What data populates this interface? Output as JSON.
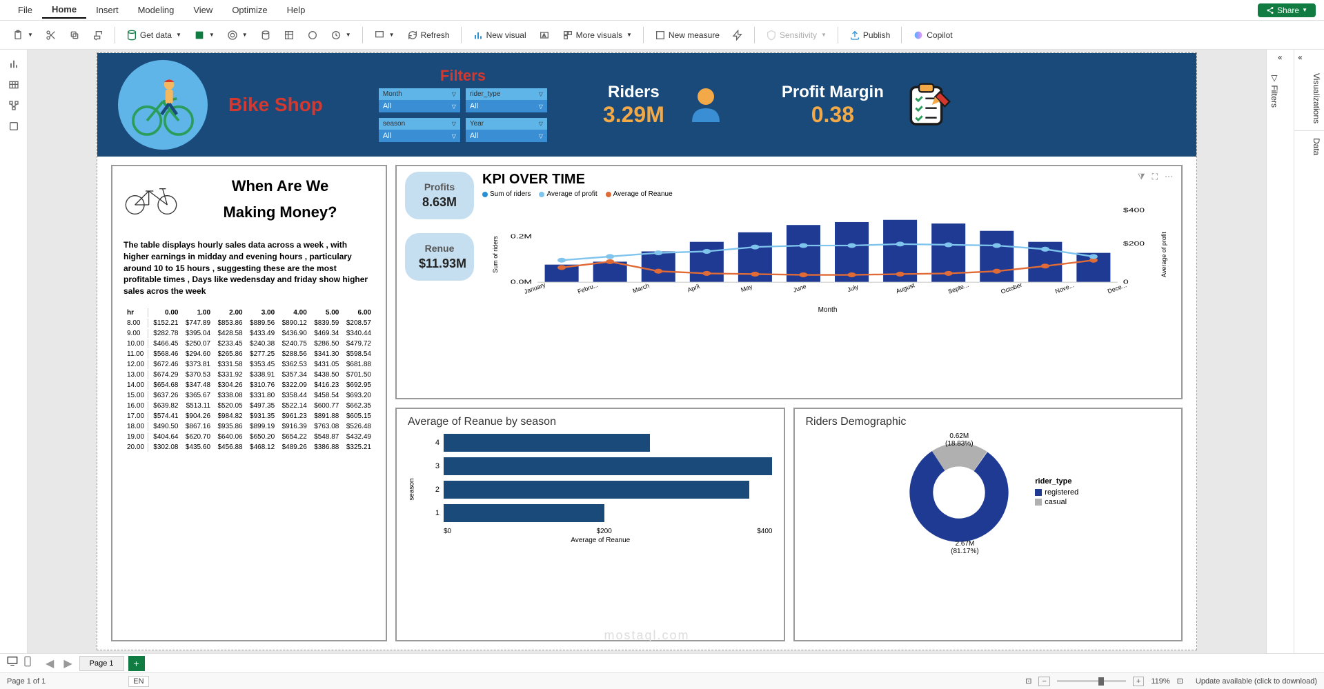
{
  "menu": [
    "File",
    "Home",
    "Insert",
    "Modeling",
    "View",
    "Optimize",
    "Help"
  ],
  "menu_active": "Home",
  "share_label": "Share",
  "toolbar": {
    "get_data": "Get data",
    "refresh": "Refresh",
    "new_visual": "New visual",
    "more_visuals": "More visuals",
    "new_measure": "New measure",
    "sensitivity": "Sensitivity",
    "publish": "Publish",
    "copilot": "Copilot"
  },
  "right_rail": {
    "visualizations": "Visualizations",
    "data": "Data",
    "filters": "Filters"
  },
  "header": {
    "shop_title": "Bike Shop",
    "filters_title": "Filters",
    "filters": [
      {
        "label": "Month",
        "value": "All"
      },
      {
        "label": "rider_type",
        "value": "All"
      },
      {
        "label": "season",
        "value": "All"
      },
      {
        "label": "Year",
        "value": "All"
      }
    ],
    "riders_label": "Riders",
    "riders_value": "3.29M",
    "pm_label": "Profit Margin",
    "pm_value": "0.38"
  },
  "insight": {
    "title1": "When Are We",
    "title2": "Making Money?",
    "text": "The table displays hourly sales data across a week , with higher earnings in midday and evening hours , particulary around 10 to 15 hours , suggesting these are the most profitable times , Days like wedensday and friday show higher sales acros the week",
    "columns": [
      "hr",
      "0.00",
      "1.00",
      "2.00",
      "3.00",
      "4.00",
      "5.00",
      "6.00"
    ],
    "rows": [
      [
        "8.00",
        "$152.21",
        "$747.89",
        "$853.86",
        "$889.56",
        "$890.12",
        "$839.59",
        "$208.57"
      ],
      [
        "9.00",
        "$282.78",
        "$395.04",
        "$428.58",
        "$433.49",
        "$436.90",
        "$469.34",
        "$340.44"
      ],
      [
        "10.00",
        "$466.45",
        "$250.07",
        "$233.45",
        "$240.38",
        "$240.75",
        "$286.50",
        "$479.72"
      ],
      [
        "11.00",
        "$568.46",
        "$294.60",
        "$265.86",
        "$277.25",
        "$288.56",
        "$341.30",
        "$598.54"
      ],
      [
        "12.00",
        "$672.46",
        "$373.81",
        "$331.58",
        "$353.45",
        "$362.53",
        "$431.05",
        "$681.88"
      ],
      [
        "13.00",
        "$674.29",
        "$370.53",
        "$331.92",
        "$338.91",
        "$357.34",
        "$438.50",
        "$701.50"
      ],
      [
        "14.00",
        "$654.68",
        "$347.48",
        "$304.26",
        "$310.76",
        "$322.09",
        "$416.23",
        "$692.95"
      ],
      [
        "15.00",
        "$637.26",
        "$365.67",
        "$338.08",
        "$331.80",
        "$358.44",
        "$458.54",
        "$693.20"
      ],
      [
        "16.00",
        "$639.82",
        "$513.11",
        "$520.05",
        "$497.35",
        "$522.14",
        "$600.77",
        "$662.35"
      ],
      [
        "17.00",
        "$574.41",
        "$904.26",
        "$984.82",
        "$931.35",
        "$961.23",
        "$891.88",
        "$605.15"
      ],
      [
        "18.00",
        "$490.50",
        "$867.16",
        "$935.86",
        "$899.19",
        "$916.39",
        "$763.08",
        "$526.48"
      ],
      [
        "19.00",
        "$404.64",
        "$620.70",
        "$640.06",
        "$650.20",
        "$654.22",
        "$548.87",
        "$432.49"
      ],
      [
        "20.00",
        "$302.08",
        "$435.60",
        "$456.88",
        "$468.12",
        "$489.26",
        "$386.88",
        "$325.21"
      ]
    ]
  },
  "kpi_panel": {
    "title": "KPI OVER TIME",
    "side_cards": [
      {
        "label": "Profits",
        "value": "8.63M"
      },
      {
        "label": "Renue",
        "value": "$11.93M"
      }
    ],
    "legend": [
      {
        "label": "Sum of riders",
        "color": "#2a8fd4"
      },
      {
        "label": "Average of profit",
        "color": "#7fc4ec"
      },
      {
        "label": "Average of Reanue",
        "color": "#e06b37"
      }
    ],
    "months": [
      "January",
      "Febru...",
      "March",
      "April",
      "May",
      "June",
      "July",
      "August",
      "Septe...",
      "October",
      "Nove...",
      "Dece..."
    ],
    "bars": [
      0.24,
      0.28,
      0.42,
      0.55,
      0.68,
      0.78,
      0.82,
      0.85,
      0.8,
      0.7,
      0.55,
      0.4
    ],
    "line_profit": [
      0.3,
      0.35,
      0.4,
      0.42,
      0.48,
      0.5,
      0.5,
      0.52,
      0.51,
      0.5,
      0.45,
      0.35
    ],
    "line_revenue": [
      0.1,
      0.18,
      0.05,
      0.02,
      0.01,
      0.0,
      0.0,
      0.01,
      0.02,
      0.05,
      0.12,
      0.2
    ],
    "bar_color": "#1f3a93",
    "y_left_ticks": [
      "0.2M",
      "0.0M"
    ],
    "y_right_ticks": [
      "$400",
      "$200",
      "0"
    ],
    "y_left_title": "Sum of riders",
    "y_right_title": "Average of profit",
    "x_title": "Month"
  },
  "season_chart": {
    "title": "Average of Reanue by season",
    "y_title": "season",
    "x_title": "Average of Reanue",
    "x_ticks": [
      "$0",
      "$200",
      "$400"
    ],
    "bars": [
      {
        "label": "4",
        "value": 270,
        "max": 450
      },
      {
        "label": "3",
        "value": 430,
        "max": 450
      },
      {
        "label": "2",
        "value": 400,
        "max": 450
      },
      {
        "label": "1",
        "value": 210,
        "max": 450
      }
    ],
    "bar_color": "#1a4a7a"
  },
  "donut": {
    "title": "Riders Demographic",
    "legend_title": "rider_type",
    "top_label": "0.62M",
    "top_pct": "(18.83%)",
    "bottom_label": "2.67M",
    "bottom_pct": "(81.17%)",
    "slices": [
      {
        "label": "registered",
        "value": 81.17,
        "color": "#1f3a93"
      },
      {
        "label": "casual",
        "value": 18.83,
        "color": "#b0b0b0"
      }
    ]
  },
  "page_tab": "Page 1",
  "status": {
    "page": "Page 1 of 1",
    "lang": "EN",
    "zoom": "119%",
    "update": "Update available (click to download)"
  },
  "watermark": "mostaql.com",
  "colors": {
    "banner": "#1a4a7a",
    "accent": "#f2a948",
    "filter_bg": "#5fb4e8"
  }
}
